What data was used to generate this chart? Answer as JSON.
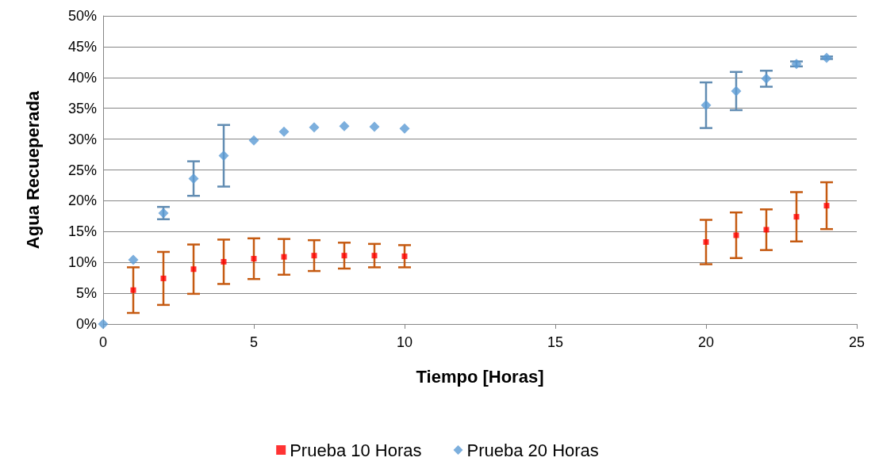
{
  "chart_data": {
    "type": "scatter",
    "xlabel": "Tiempo [Horas]",
    "ylabel": "Agua Recueperada",
    "xlim": [
      0,
      25
    ],
    "xticks": [
      0,
      5,
      10,
      15,
      20,
      25
    ],
    "ylim": [
      0,
      50
    ],
    "yticks": [
      {
        "value": 0,
        "label": "0%"
      },
      {
        "value": 5,
        "label": "5%"
      },
      {
        "value": 10,
        "label": "10%"
      },
      {
        "value": 15,
        "label": "15%"
      },
      {
        "value": 20,
        "label": "20%"
      },
      {
        "value": 25,
        "label": "25%"
      },
      {
        "value": 30,
        "label": "30%"
      },
      {
        "value": 35,
        "label": "35%"
      },
      {
        "value": 40,
        "label": "40%"
      },
      {
        "value": 45,
        "label": "45%"
      },
      {
        "value": 50,
        "label": "50%"
      }
    ],
    "grid": "y",
    "legend": "bottom",
    "series": [
      {
        "name": "Prueba 10 Horas",
        "color": "#ff0000",
        "marker": "square",
        "x": [
          1,
          2,
          3,
          4,
          5,
          6,
          7,
          8,
          9,
          10,
          20,
          21,
          22,
          23,
          24
        ],
        "values": [
          5.5,
          7.4,
          8.9,
          10.1,
          10.6,
          10.9,
          11.1,
          11.1,
          11.1,
          11.0,
          13.3,
          14.4,
          15.3,
          17.4,
          19.2
        ],
        "errors": [
          3.7,
          4.3,
          4.0,
          3.6,
          3.3,
          2.9,
          2.5,
          2.1,
          1.9,
          1.8,
          3.6,
          3.7,
          3.3,
          4.0,
          3.8
        ]
      },
      {
        "name": "Prueba 20 Horas",
        "color": "#5b9bd5",
        "marker": "diamond",
        "x": [
          0,
          1,
          2,
          3,
          4,
          5,
          6,
          7,
          8,
          9,
          10,
          20,
          21,
          22,
          23,
          24
        ],
        "values": [
          0,
          10.4,
          18.0,
          23.6,
          27.3,
          29.8,
          31.2,
          31.9,
          32.1,
          32.0,
          31.7,
          35.5,
          37.8,
          39.8,
          42.2,
          43.2
        ],
        "errors": [
          null,
          null,
          1.0,
          2.8,
          5.0,
          null,
          null,
          null,
          null,
          null,
          null,
          3.7,
          3.1,
          1.3,
          0.4,
          0.2
        ]
      }
    ]
  }
}
